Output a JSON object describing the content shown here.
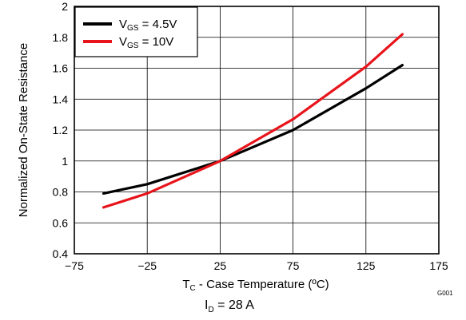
{
  "chart_data": {
    "type": "line",
    "xlabel_prefix": "T",
    "xlabel_sub": "C",
    "xlabel_rest": " - Case Temperature (ºC)",
    "ylabel": "Normalized On-State Resistance",
    "xlim": [
      -75,
      175
    ],
    "ylim": [
      0.4,
      2
    ],
    "xticks": [
      -75,
      -25,
      25,
      75,
      125,
      175
    ],
    "xtick_labels": [
      "−75",
      "−25",
      "25",
      "75",
      "125",
      "175"
    ],
    "yticks": [
      0.4,
      0.6,
      0.8,
      1,
      1.2,
      1.4,
      1.6,
      1.8,
      2
    ],
    "ytick_labels": [
      "0.4",
      "0.6",
      "0.8",
      "1",
      "1.2",
      "1.4",
      "1.6",
      "1.8",
      "2"
    ],
    "grid": true,
    "legend_position": "top-left",
    "condition_prefix": "I",
    "condition_sub": "D",
    "condition_rest": " = 28 A",
    "figure_id": "G001",
    "series": [
      {
        "name_prefix": "V",
        "name_sub": "GS",
        "name_rest": " = 4.5V",
        "color": "#000000",
        "x": [
          -55,
          -25,
          25,
          75,
          125,
          150
        ],
        "y": [
          0.79,
          0.85,
          1.0,
          1.2,
          1.47,
          1.62
        ]
      },
      {
        "name_prefix": "V",
        "name_sub": "GS",
        "name_rest": " = 10V",
        "color": "#e8141b",
        "x": [
          -55,
          -25,
          25,
          75,
          125,
          150
        ],
        "y": [
          0.7,
          0.79,
          1.0,
          1.27,
          1.61,
          1.82
        ]
      }
    ]
  }
}
